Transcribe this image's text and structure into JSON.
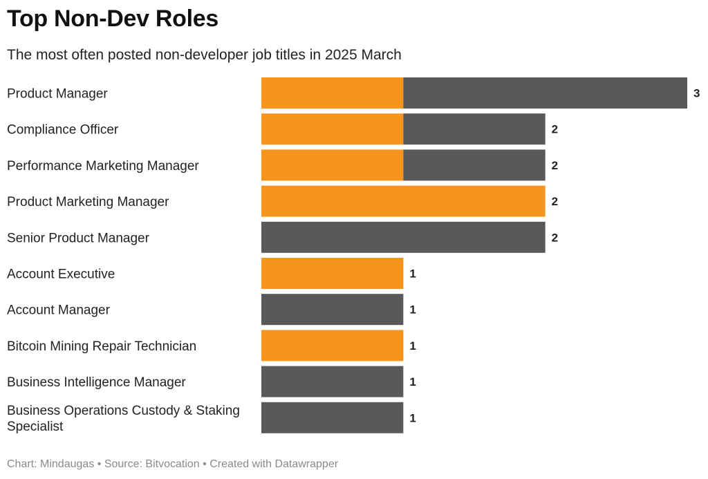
{
  "title": "Top Non-Dev Roles",
  "subtitle": "The most often posted non-developer job titles in 2025 March",
  "footer": {
    "credit": "Chart: Mindaugas",
    "sep": "•",
    "source": "Source: Bitvocation",
    "tool": "Created with Datawrapper"
  },
  "colors": {
    "orange": "#f7941d",
    "gray": "#595959"
  },
  "chart_data": {
    "type": "bar",
    "orientation": "horizontal",
    "stacked": true,
    "categories": [
      "Product Manager",
      "Compliance Officer",
      "Performance Marketing Manager",
      "Product Marketing Manager",
      "Senior Product Manager",
      "Account Executive",
      "Account Manager",
      "Bitcoin Mining Repair Technician",
      "Business Intelligence Manager",
      "Business Operations Custody & Staking Specialist"
    ],
    "category_lines": [
      [
        "Product Manager"
      ],
      [
        "Compliance Officer"
      ],
      [
        "Performance Marketing Manager"
      ],
      [
        "Product Marketing Manager"
      ],
      [
        "Senior Product Manager"
      ],
      [
        "Account Executive"
      ],
      [
        "Account Manager"
      ],
      [
        "Bitcoin Mining Repair Technician"
      ],
      [
        "Business Intelligence Manager"
      ],
      [
        "Business Operations Custody & Staking",
        "Specialist"
      ]
    ],
    "series": [
      {
        "values": [
          1,
          1,
          1,
          2,
          0,
          1,
          0,
          1,
          0,
          0
        ],
        "color": "#f7941d"
      },
      {
        "values": [
          2,
          1,
          1,
          0,
          2,
          0,
          1,
          0,
          1,
          1
        ],
        "color": "#595959"
      }
    ],
    "totals": [
      3,
      2,
      2,
      2,
      2,
      1,
      1,
      1,
      1,
      1
    ],
    "xlim": [
      0,
      3
    ],
    "grid": false,
    "legend": "none"
  }
}
